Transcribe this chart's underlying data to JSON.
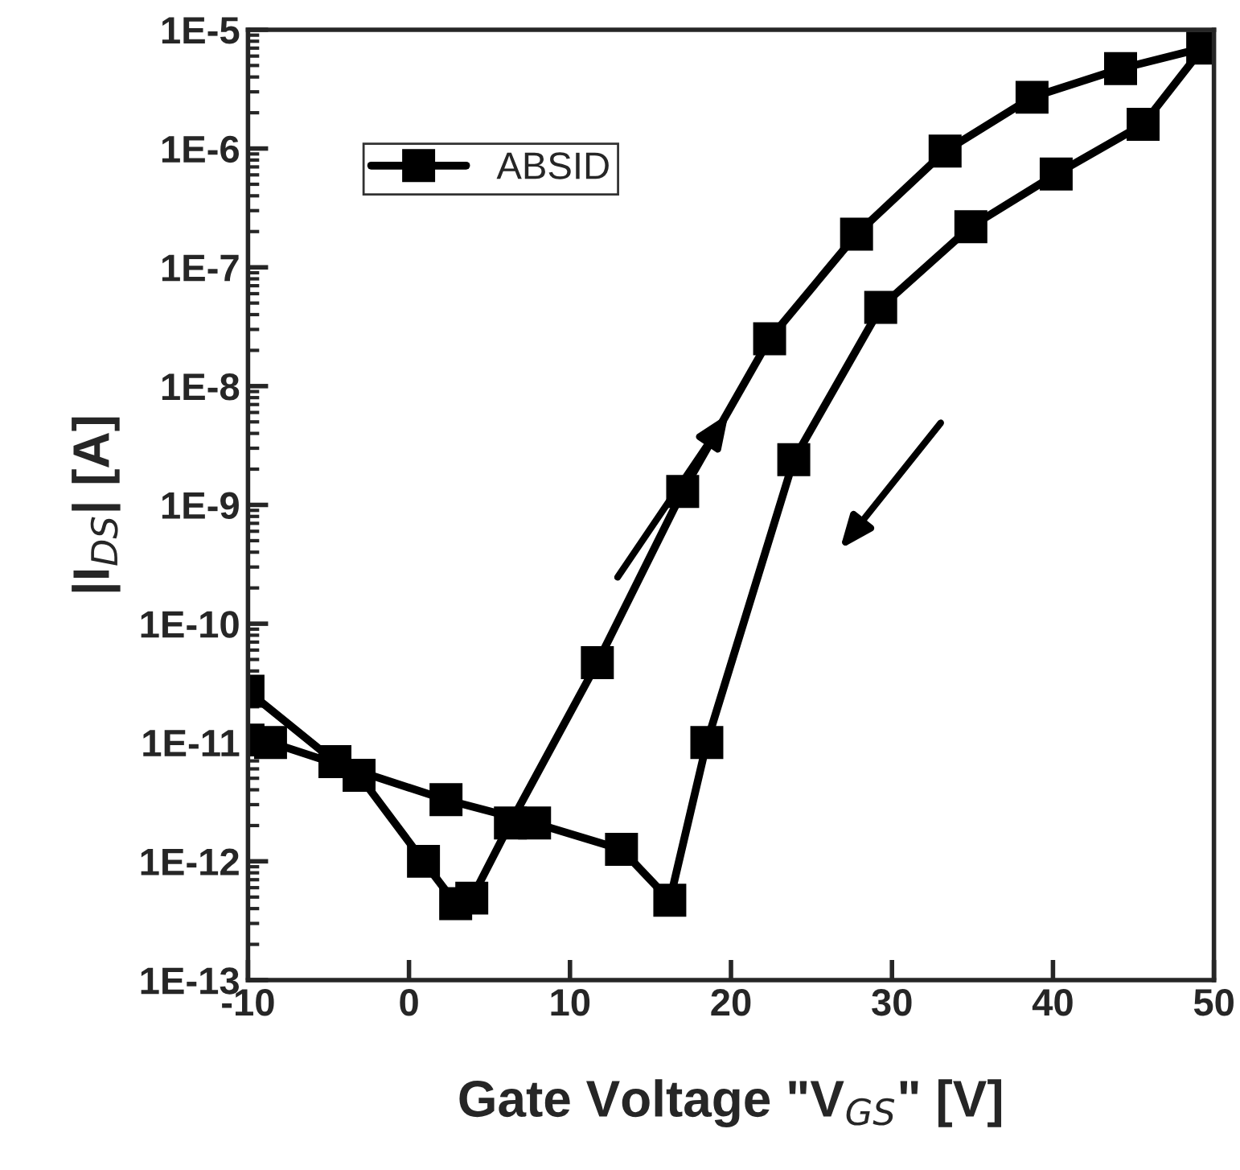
{
  "chart_data": {
    "type": "line",
    "xlabel": "Gate Voltage \"V$_{GS}$\" [V]",
    "ylabel": "|I$_{DS}$| [A]",
    "log": "y",
    "xlim": [
      -10,
      50
    ],
    "xticks": [
      -10,
      0,
      10,
      20,
      30,
      40,
      50
    ],
    "ylim": [
      1e-13,
      1e-05
    ],
    "yticks": [
      {
        "value": 1e-13,
        "label": "1E-13"
      },
      {
        "value": 1e-12,
        "label": "1E-12"
      },
      {
        "value": 1e-11,
        "label": "1E-11"
      },
      {
        "value": 1e-10,
        "label": "1E-10"
      },
      {
        "value": 1e-09,
        "label": "1E-9"
      },
      {
        "value": 1e-08,
        "label": "1E-8"
      },
      {
        "value": 1e-07,
        "label": "1E-7"
      },
      {
        "value": 1e-06,
        "label": "1E-6"
      },
      {
        "value": 1e-05,
        "label": "1E-5"
      }
    ],
    "grid": false,
    "legend": "top left",
    "marker": "square",
    "line_style": "solid",
    "series": [
      {
        "name": "ABSID",
        "color": "#000000",
        "x": [
          -10,
          -4.6,
          -3.1,
          0.9,
          2.9,
          3.9,
          6.3,
          11.7,
          17.0,
          22.4,
          27.8,
          33.3,
          38.7,
          44.2,
          49.3,
          45.6,
          40.2,
          34.9,
          29.3,
          23.9,
          18.5,
          16.2,
          13.2,
          7.8,
          2.3,
          -8.6,
          -10
        ],
        "values": [
          2.7e-11,
          6.9e-12,
          5.3e-12,
          1e-12,
          4.4e-13,
          4.9e-13,
          2.1e-12,
          4.7e-11,
          1.3e-09,
          2.5e-08,
          1.9e-07,
          9.5e-07,
          2.7e-06,
          4.7e-06,
          7e-06,
          1.6e-06,
          6.1e-07,
          2.2e-07,
          4.6e-08,
          2.4e-09,
          1e-11,
          4.7e-13,
          1.26e-12,
          2.1e-12,
          3.3e-12,
          1e-11,
          1.05e-11
        ]
      }
    ]
  }
}
